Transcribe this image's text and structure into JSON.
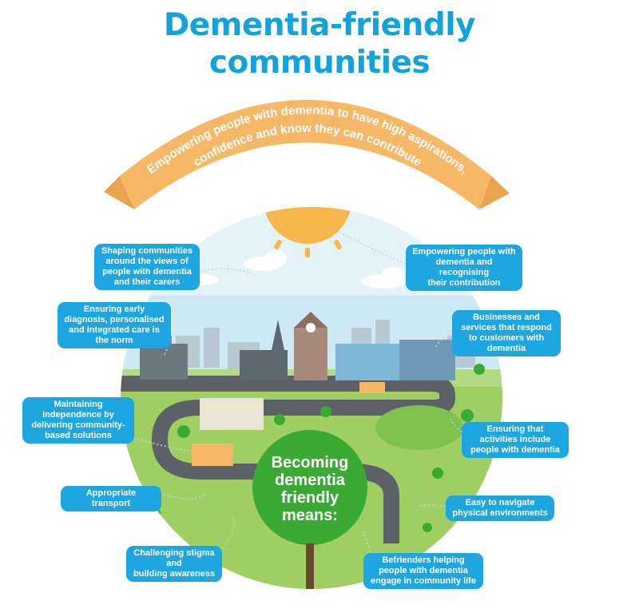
{
  "title_line1": "Dementia-friendly",
  "title_line2": "communities",
  "banner_text_line1": "Empowering people with dementia to have high aspirations,",
  "banner_text_line2": "confidence and know they can contribute",
  "center_label": [
    "Becoming",
    "dementia",
    "friendly",
    "means:"
  ],
  "callouts": {
    "shaping": [
      "Shaping communities",
      "around the views of",
      "people with dementia",
      "and their carers"
    ],
    "early_diagnosis": [
      "Ensuring early",
      "diagnosis, personalised",
      "and integrated care is",
      "the norm"
    ],
    "independence": [
      "Maintaining",
      "independence by",
      "delivering community-",
      "based solutions"
    ],
    "transport": [
      "Appropriate transport"
    ],
    "stigma": [
      "Challenging stigma and",
      "building awareness"
    ],
    "empowering": [
      "Empowering people with",
      "dementia and recognising",
      "their contribution"
    ],
    "businesses": [
      "Businesses and",
      "services that respond",
      "to customers with",
      "dementia"
    ],
    "activities": [
      "Ensuring that",
      "activities include",
      "people with dementia"
    ],
    "navigate": [
      "Easy to navigate",
      "physical environments"
    ],
    "befrienders": [
      "Befrienders helping",
      "people with dementia",
      "engage in community life"
    ]
  },
  "colors": {
    "title": "#14a3d8",
    "callout": "#1ea6e0",
    "banner": "#f6b866",
    "sun": "#f8b74a",
    "sky": "#cde9f6",
    "grass": "#9fcf63",
    "road": "#5b6166",
    "center_circle": "#3aaa35"
  }
}
